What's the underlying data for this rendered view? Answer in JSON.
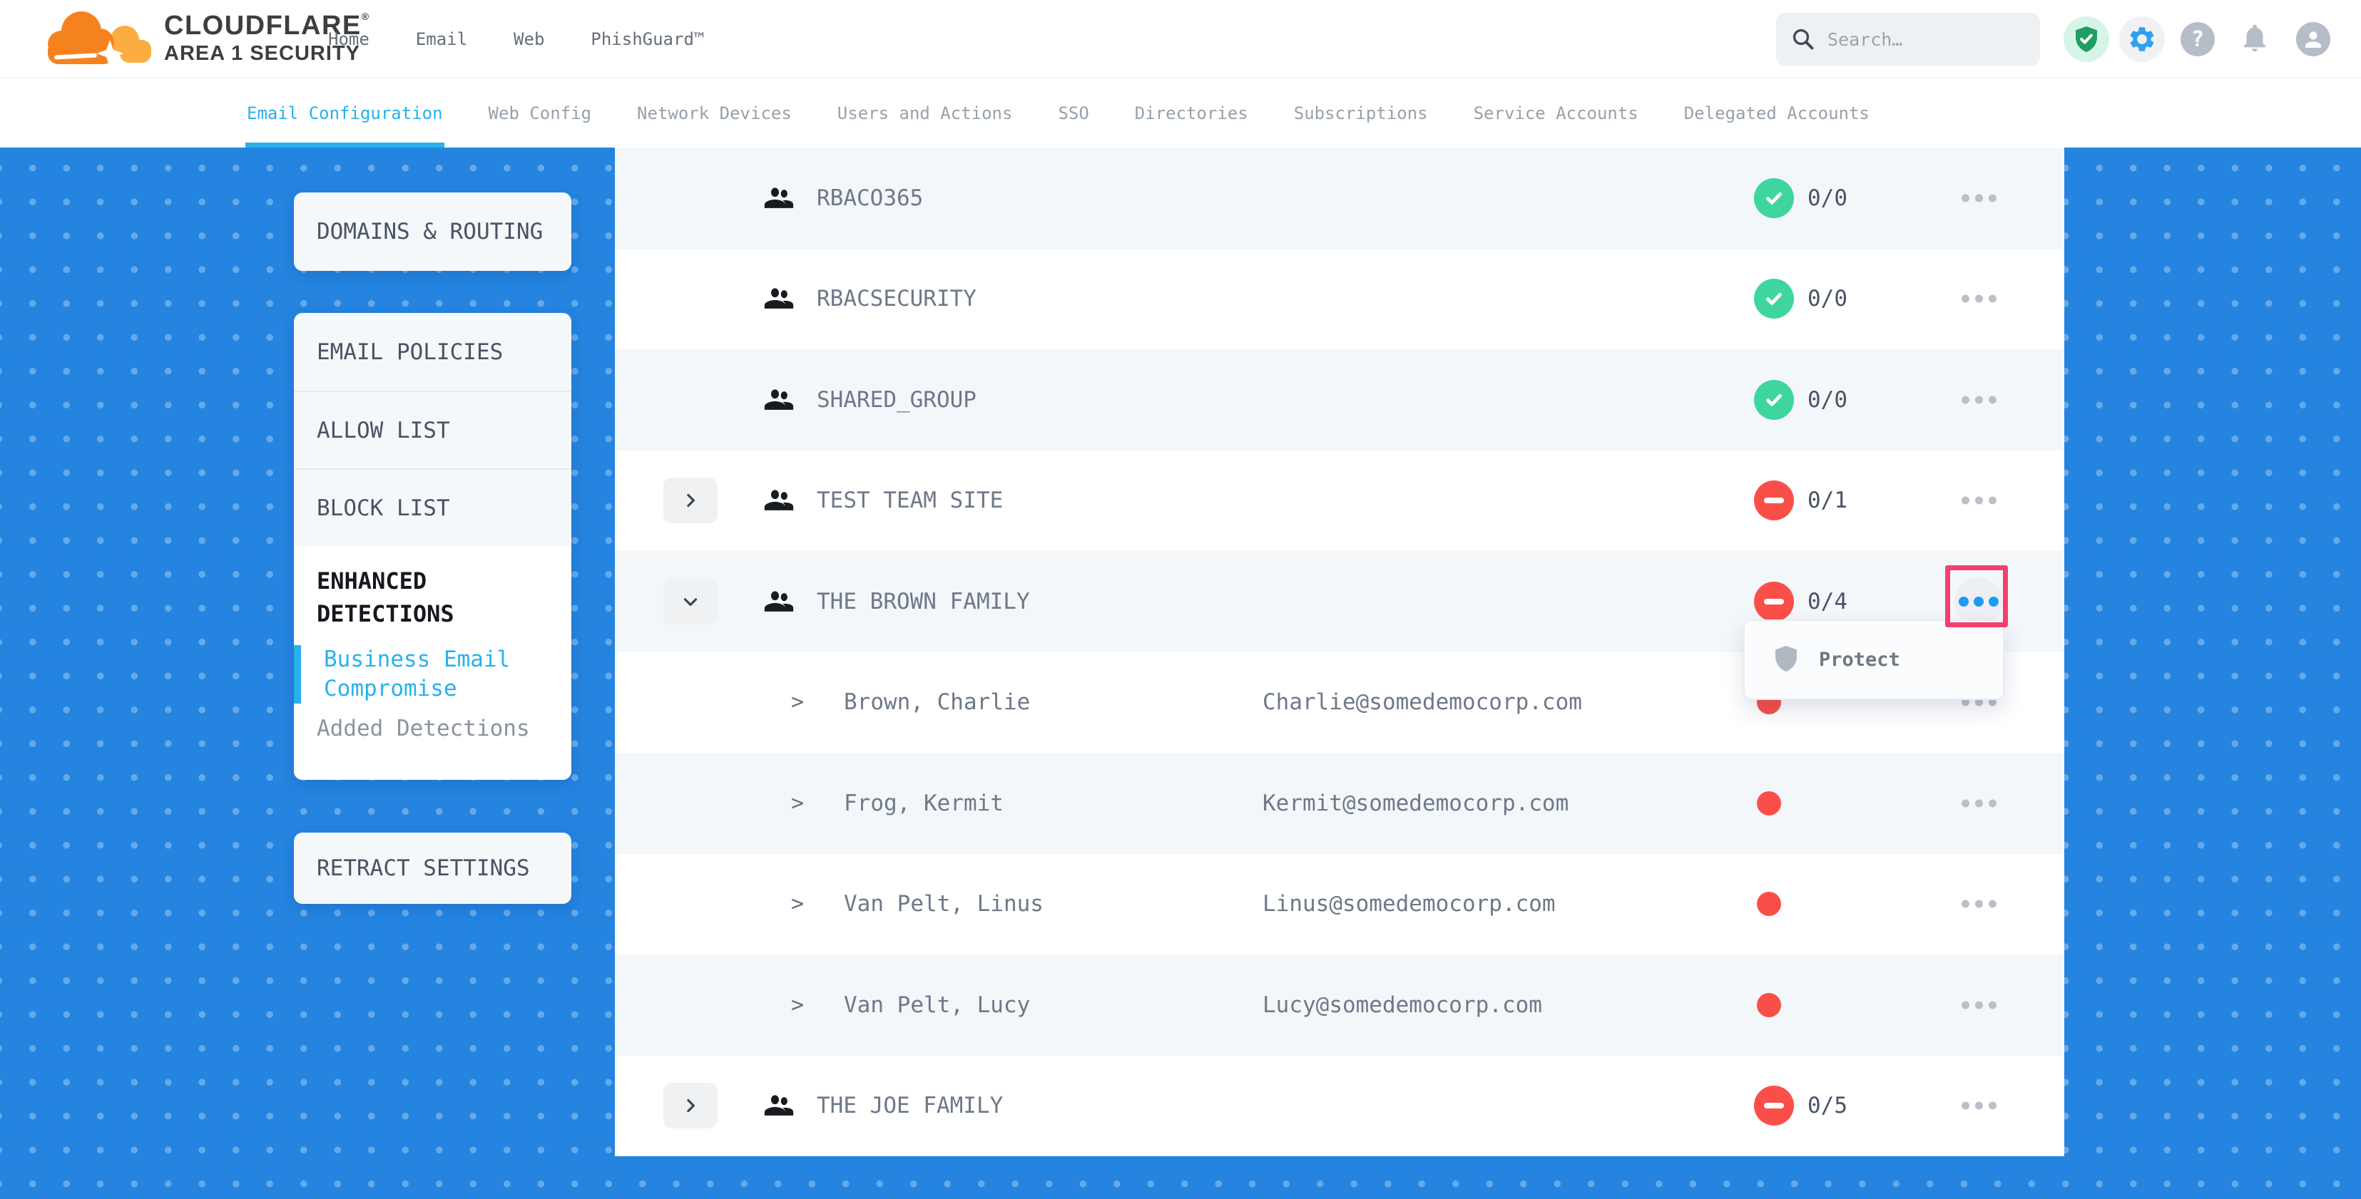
{
  "brand": {
    "name": "CLOUDFLARE",
    "registered": "®",
    "product": "AREA 1 SECURITY"
  },
  "header": {
    "nav": [
      "Home",
      "Email",
      "Web",
      "PhishGuard™"
    ],
    "search": {
      "placeholder": "Search…"
    },
    "status_icons": [
      {
        "icon": "shield-check",
        "style": "green-badge"
      },
      {
        "icon": "settings-gear",
        "style": "gray-badge"
      },
      {
        "icon": "help",
        "style": "gray"
      },
      {
        "icon": "notifications-bell",
        "style": "gray"
      },
      {
        "icon": "account",
        "style": "gray"
      }
    ]
  },
  "tabs": [
    {
      "label": "Email Configuration",
      "active": true
    },
    {
      "label": "Web Config",
      "active": false
    },
    {
      "label": "Network Devices",
      "active": false
    },
    {
      "label": "Users and Actions",
      "active": false
    },
    {
      "label": "SSO",
      "active": false
    },
    {
      "label": "Directories",
      "active": false
    },
    {
      "label": "Subscriptions",
      "active": false
    },
    {
      "label": "Service Accounts",
      "active": false
    },
    {
      "label": "Delegated Accounts",
      "active": false
    }
  ],
  "sidebar": [
    {
      "items": [
        {
          "label": "DOMAINS & ROUTING"
        }
      ]
    },
    {
      "items": [
        {
          "label": "EMAIL POLICIES"
        },
        {
          "label": "ALLOW LIST"
        },
        {
          "label": "BLOCK LIST"
        }
      ],
      "section": {
        "title": "ENHANCED DETECTIONS",
        "links": [
          {
            "label": "Business Email Compromise",
            "active": true
          },
          {
            "label": "Added Detections",
            "active": false
          }
        ]
      }
    },
    {
      "items": [
        {
          "label": "RETRACT SETTINGS"
        }
      ]
    }
  ],
  "table": {
    "rows": [
      {
        "type": "group",
        "name": "RBACO365",
        "count": "0/0",
        "status": "ok",
        "expandable": false,
        "expanded": false,
        "menu_open": false
      },
      {
        "type": "group",
        "name": "RBACSECURITY",
        "count": "0/0",
        "status": "ok",
        "expandable": false,
        "expanded": false,
        "menu_open": false
      },
      {
        "type": "group",
        "name": "SHARED_GROUP",
        "count": "0/0",
        "status": "ok",
        "expandable": false,
        "expanded": false,
        "menu_open": false
      },
      {
        "type": "group",
        "name": "TEST TEAM SITE",
        "count": "0/1",
        "status": "alert",
        "expandable": true,
        "expanded": false,
        "menu_open": false
      },
      {
        "type": "group",
        "name": "THE BROWN FAMILY",
        "count": "0/4",
        "status": "alert",
        "expandable": true,
        "expanded": true,
        "menu_open": true
      },
      {
        "type": "member",
        "name": "Brown, Charlie",
        "email": "Charlie@somedemocorp.com",
        "status": "alert"
      },
      {
        "type": "member",
        "name": "Frog, Kermit",
        "email": "Kermit@somedemocorp.com",
        "status": "alert"
      },
      {
        "type": "member",
        "name": "Van Pelt, Linus",
        "email": "Linus@somedemocorp.com",
        "status": "alert"
      },
      {
        "type": "member",
        "name": "Van Pelt, Lucy",
        "email": "Lucy@somedemocorp.com",
        "status": "alert"
      },
      {
        "type": "group",
        "name": "THE JOE FAMILY",
        "count": "0/5",
        "status": "alert",
        "expandable": true,
        "expanded": false,
        "menu_open": false
      }
    ]
  },
  "context_menu": {
    "items": [
      {
        "icon": "shield",
        "label": "Protect"
      }
    ]
  },
  "colors": {
    "background_blue": "#2484e0",
    "accent_cyan": "#28b1ec",
    "status_ok_green": "#3ed69e",
    "status_alert_red": "#fa4f49",
    "highlight_pink": "#f5406e",
    "active_menu_dots_blue": "#1e9bf1",
    "brand_orange": "#f6821f",
    "brand_light_orange": "#fbad41"
  }
}
